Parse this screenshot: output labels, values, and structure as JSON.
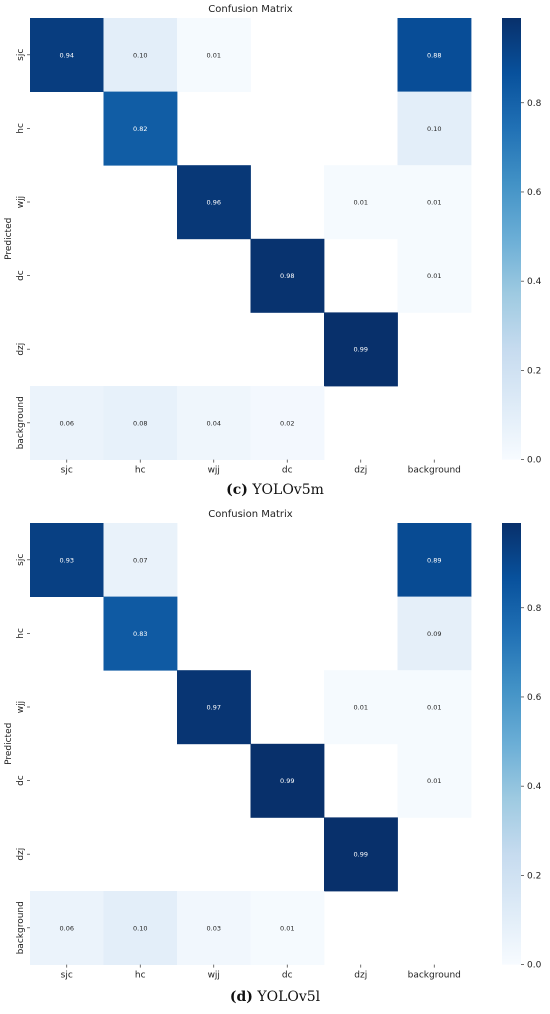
{
  "chart_data": [
    {
      "type": "heatmap",
      "title": "Confusion Matrix",
      "ylabel": "Predicted",
      "xlabel": "",
      "x_categories": [
        "sjc",
        "hc",
        "wjj",
        "dc",
        "dzj",
        "background"
      ],
      "y_categories": [
        "sjc",
        "hc",
        "wjj",
        "dc",
        "dzj",
        "background"
      ],
      "values": [
        [
          0.94,
          0.1,
          0.01,
          null,
          null,
          0.88
        ],
        [
          null,
          0.82,
          null,
          null,
          null,
          0.1
        ],
        [
          null,
          null,
          0.96,
          null,
          0.01,
          0.01
        ],
        [
          null,
          null,
          null,
          0.98,
          null,
          0.01
        ],
        [
          null,
          null,
          null,
          null,
          0.99,
          null
        ],
        [
          0.06,
          0.08,
          0.04,
          0.02,
          null,
          null
        ]
      ],
      "vmin": 0,
      "vmax": 0.99,
      "colorbar_ticks": [
        0.0,
        0.2,
        0.4,
        0.6,
        0.8
      ],
      "colormap": "Blues",
      "caption_letter": "(c)",
      "caption_text": "YOLOv5m"
    },
    {
      "type": "heatmap",
      "title": "Confusion Matrix",
      "ylabel": "Predicted",
      "xlabel": "",
      "x_categories": [
        "sjc",
        "hc",
        "wjj",
        "dc",
        "dzj",
        "background"
      ],
      "y_categories": [
        "sjc",
        "hc",
        "wjj",
        "dc",
        "dzj",
        "background"
      ],
      "values": [
        [
          0.93,
          0.07,
          null,
          null,
          null,
          0.89
        ],
        [
          null,
          0.83,
          null,
          null,
          null,
          0.09
        ],
        [
          null,
          null,
          0.97,
          null,
          0.01,
          0.01
        ],
        [
          null,
          null,
          null,
          0.99,
          null,
          0.01
        ],
        [
          null,
          null,
          null,
          null,
          0.99,
          null
        ],
        [
          0.06,
          0.1,
          0.03,
          0.01,
          null,
          null
        ]
      ],
      "vmin": 0,
      "vmax": 0.99,
      "colorbar_ticks": [
        0.0,
        0.2,
        0.4,
        0.6,
        0.8
      ],
      "colormap": "Blues",
      "caption_letter": "(d)",
      "caption_text": "YOLOv5l"
    }
  ]
}
